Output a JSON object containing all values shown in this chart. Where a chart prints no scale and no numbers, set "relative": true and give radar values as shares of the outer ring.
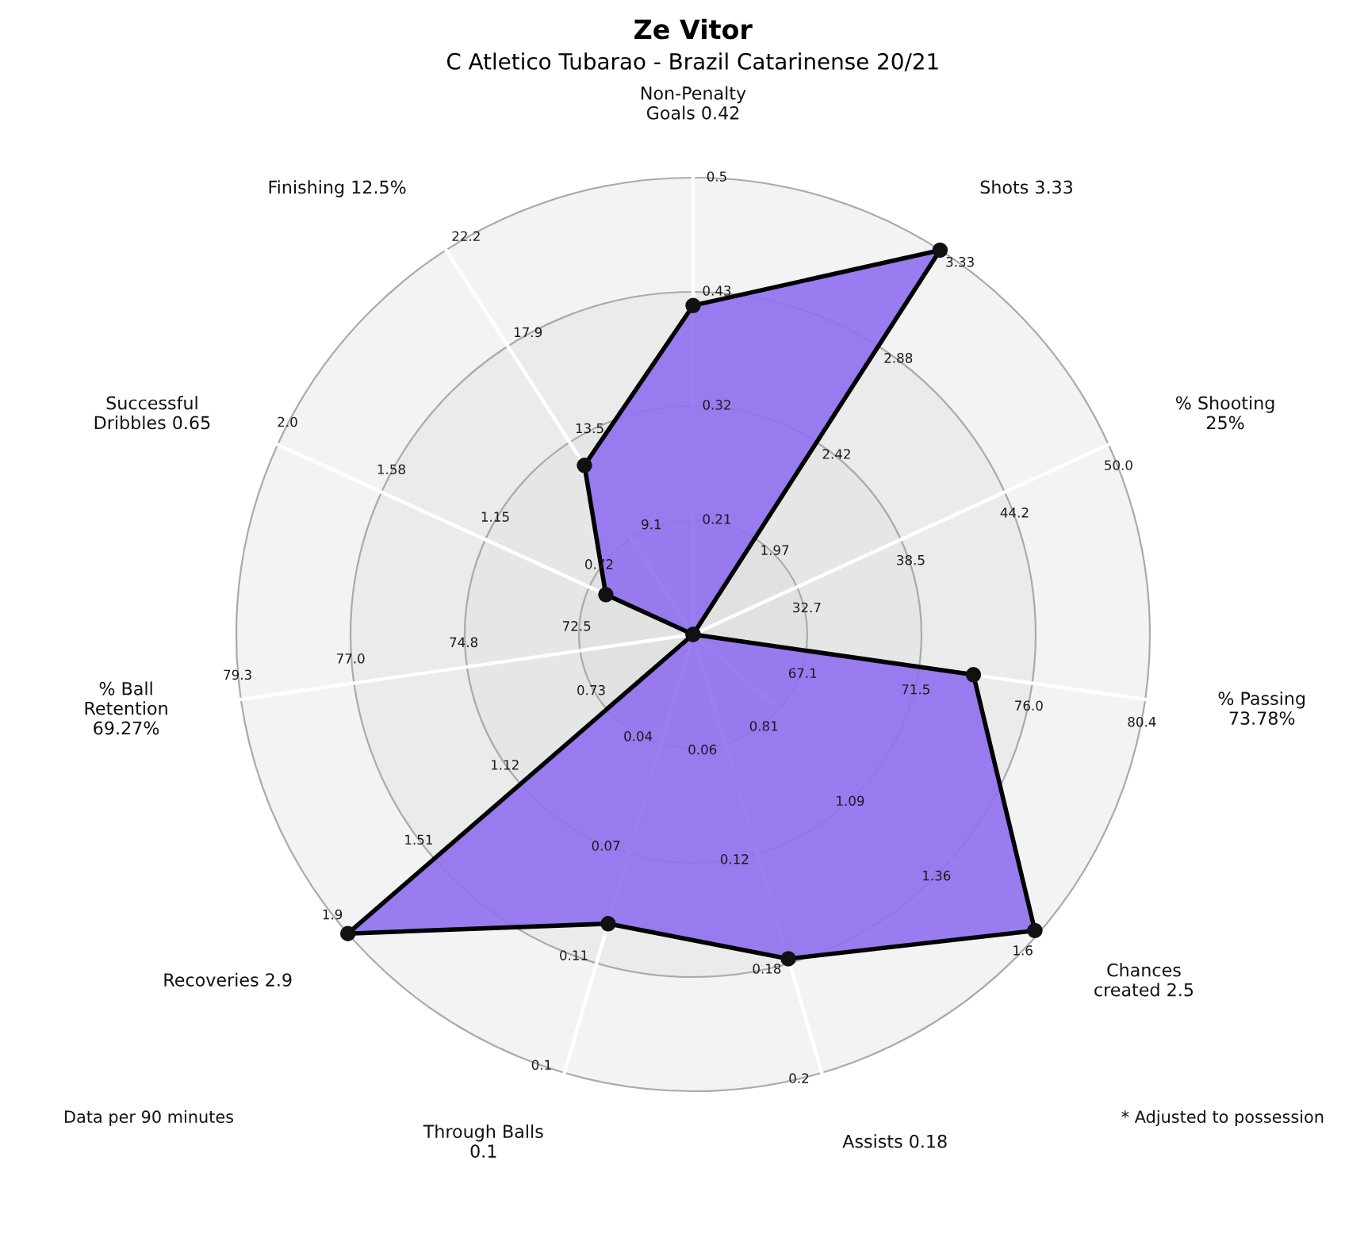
{
  "chart_data": {
    "type": "radar",
    "title": "Ze Vitor",
    "subtitle": "C Atletico Tubarao - Brazil Catarinense 20/21",
    "relative": true,
    "grid": true,
    "marker": "circle",
    "line_style": "solid",
    "categories": [
      "Non-Penalty\nGoals 0.42",
      "Shots 3.33",
      "% Shooting\n25%",
      "% Passing\n73.78%",
      "Chances\ncreated 2.5",
      "Assists 0.18",
      "Through Balls\n0.1",
      "Recoveries 2.9",
      "% Ball\nRetention\n69.27%",
      "Successful\nDribbles 0.65",
      "Finishing 12.5%"
    ],
    "series": [
      {
        "color": "#8f6ff0",
        "values": [
          0.72,
          1.0,
          0,
          0.62,
          0.99,
          0.74,
          0.66,
          1.0,
          0,
          0.21,
          0.44
        ]
      }
    ],
    "annotations": [
      "0.21",
      "0.32",
      "0.43",
      "0.5",
      "1.97",
      "2.42",
      "2.88",
      "3.33",
      "32.7",
      "38.5",
      "44.2",
      "50.0",
      "67.1",
      "71.5",
      "76.0",
      "80.4",
      "0.81",
      "1.09",
      "1.36",
      "1.6",
      "0.06",
      "0.12",
      "0.18",
      "0.2",
      "0.04",
      "0.07",
      "0.11",
      "0.1",
      "0.73",
      "1.12",
      "1.51",
      "1.9",
      "72.5",
      "74.8",
      "77.0",
      "79.3",
      "0.72",
      "1.15",
      "1.58",
      "2.0",
      "9.1",
      "13.5",
      "17.9",
      "22.2",
      "Data per 90 minutes",
      "* Adjusted to possession"
    ]
  }
}
